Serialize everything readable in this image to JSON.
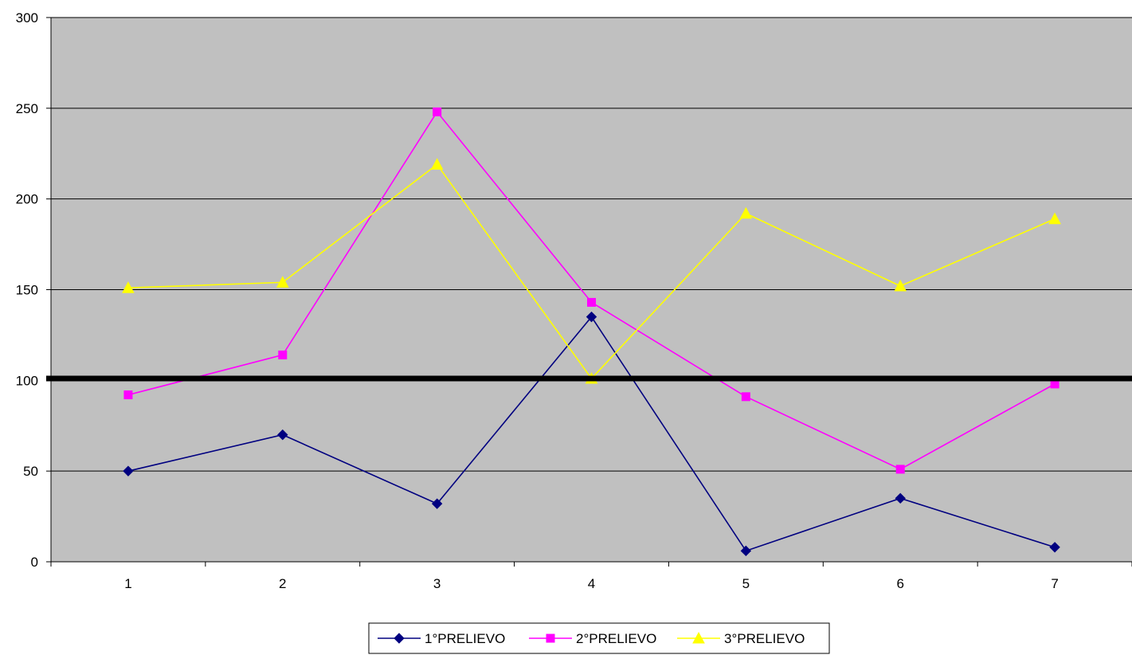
{
  "chart_data": {
    "type": "line",
    "title": "",
    "xlabel": "",
    "ylabel": "",
    "categories": [
      "1",
      "2",
      "3",
      "4",
      "5",
      "6",
      "7"
    ],
    "ylim": [
      0,
      300
    ],
    "yticks": [
      0,
      50,
      100,
      150,
      200,
      250,
      300
    ],
    "grid": "horizontal",
    "plot_background": "#c0c0c0",
    "legend_position": "bottom",
    "reference_line": {
      "value": 101,
      "color": "#000000"
    },
    "series": [
      {
        "name": "1°PRELIEVO",
        "color": "#000080",
        "marker": "diamond",
        "values": [
          50,
          70,
          32,
          135,
          6,
          35,
          8
        ]
      },
      {
        "name": "2°PRELIEVO",
        "color": "#ff00ff",
        "marker": "square",
        "values": [
          92,
          114,
          248,
          143,
          91,
          51,
          98
        ]
      },
      {
        "name": "3°PRELIEVO",
        "color": "#ffff00",
        "marker": "triangle",
        "values": [
          151,
          154,
          219,
          101,
          192,
          152,
          189
        ]
      }
    ]
  }
}
